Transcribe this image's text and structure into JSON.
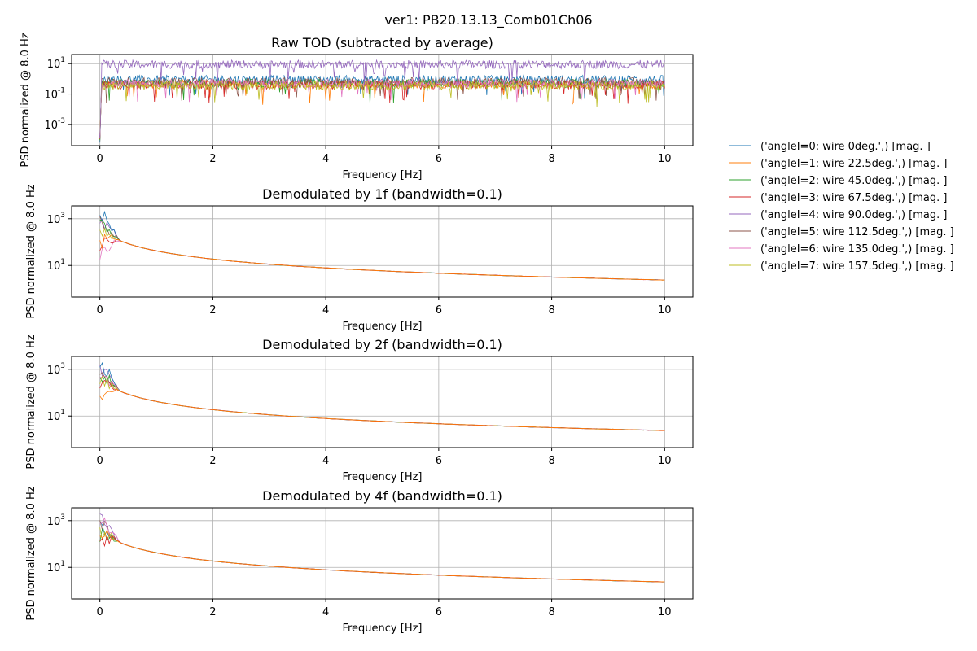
{
  "figure": {
    "suptitle": "ver1: PB20.13.13_Comb01Ch06"
  },
  "chart_data": [
    {
      "type": "line",
      "title": "Raw TOD (subtracted by average)",
      "xlabel": "Frequency [Hz]",
      "ylabel": "PSD normalized @ 8.0 Hz",
      "xlim": [
        -0.5,
        10.5
      ],
      "xticks": [
        0,
        2,
        4,
        6,
        8,
        10
      ],
      "yscale": "log",
      "ylim_exp": [
        -4.4,
        1.6
      ],
      "yticks_exp": [
        -3,
        -1,
        1
      ],
      "grid": true,
      "profile": {
        "kind": "flat",
        "base_exp": [
          -0.05,
          -0.35,
          -0.3,
          -0.4,
          0.95,
          -0.2,
          -0.3,
          -0.45
        ],
        "noise": 0.28
      }
    },
    {
      "type": "line",
      "title": "Demodulated by 1f (bandwidth=0.1)",
      "xlabel": "Frequency [Hz]",
      "ylabel": "PSD normalized @ 8.0 Hz",
      "xlim": [
        -0.5,
        10.5
      ],
      "xticks": [
        0,
        2,
        4,
        6,
        8,
        10
      ],
      "yscale": "log",
      "ylim_exp": [
        -0.35,
        3.55
      ],
      "yticks_exp": [
        1,
        3
      ],
      "grid": true,
      "profile": {
        "kind": "decay",
        "start_exp": [
          3.2,
          2.0,
          2.6,
          1.9,
          3.0,
          2.8,
          1.4,
          2.3
        ]
      }
    },
    {
      "type": "line",
      "title": "Demodulated by 2f (bandwidth=0.1)",
      "xlabel": "Frequency [Hz]",
      "ylabel": "PSD normalized @ 8.0 Hz",
      "xlim": [
        -0.5,
        10.5
      ],
      "xticks": [
        0,
        2,
        4,
        6,
        8,
        10
      ],
      "yscale": "log",
      "ylim_exp": [
        -0.35,
        3.55
      ],
      "yticks_exp": [
        1,
        3
      ],
      "grid": true,
      "profile": {
        "kind": "decay",
        "start_exp": [
          3.3,
          2.0,
          2.7,
          2.3,
          3.0,
          2.9,
          2.6,
          2.4
        ]
      }
    },
    {
      "type": "line",
      "title": "Demodulated by 4f (bandwidth=0.1)",
      "xlabel": "Frequency [Hz]",
      "ylabel": "PSD normalized @ 8.0 Hz",
      "xlim": [
        -0.5,
        10.5
      ],
      "xticks": [
        0,
        2,
        4,
        6,
        8,
        10
      ],
      "yscale": "log",
      "ylim_exp": [
        -0.35,
        3.55
      ],
      "yticks_exp": [
        1,
        3
      ],
      "grid": true,
      "profile": {
        "kind": "decay",
        "start_exp": [
          2.6,
          2.3,
          2.4,
          2.2,
          3.2,
          2.8,
          3.0,
          2.5
        ]
      }
    }
  ],
  "legend": {
    "placement": "right",
    "entries": [
      {
        "label": "('angleI=0: wire 0deg.',) [mag. ]",
        "color": "#1f77b4"
      },
      {
        "label": "('angleI=1: wire 22.5deg.',) [mag. ]",
        "color": "#ff7f0e"
      },
      {
        "label": "('angleI=2: wire 45.0deg.',) [mag. ]",
        "color": "#2ca02c"
      },
      {
        "label": "('angleI=3: wire 67.5deg.',) [mag. ]",
        "color": "#d62728"
      },
      {
        "label": "('angleI=4: wire 90.0deg.',) [mag. ]",
        "color": "#9467bd"
      },
      {
        "label": "('angleI=5: wire 112.5deg.',) [mag. ]",
        "color": "#8c564b"
      },
      {
        "label": "('angleI=6: wire 135.0deg.',) [mag. ]",
        "color": "#e377c2"
      },
      {
        "label": "('angleI=7: wire 157.5deg.',) [mag. ]",
        "color": "#bcbd22"
      }
    ]
  }
}
